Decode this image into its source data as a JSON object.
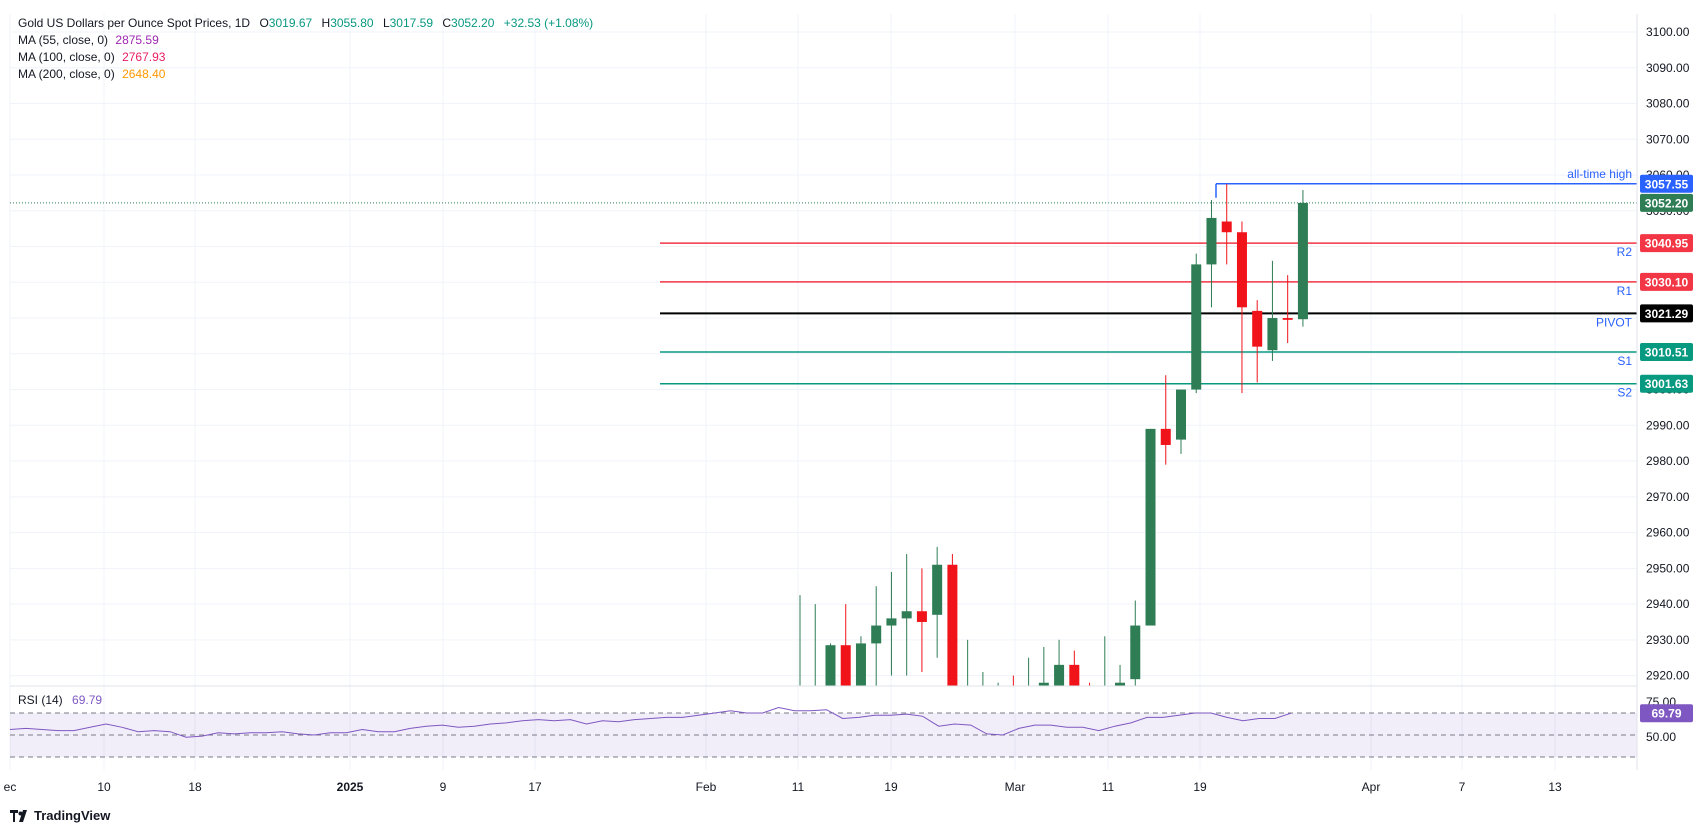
{
  "header": {
    "title": "Gold US Dollars per Ounce Spot Prices, 1D",
    "ohlc": [
      {
        "k": "O",
        "v": "3019.67"
      },
      {
        "k": "H",
        "v": "3055.80"
      },
      {
        "k": "L",
        "v": "3017.59"
      },
      {
        "k": "C",
        "v": "3052.20"
      }
    ],
    "change": "+32.53 (+1.08%)",
    "ma": [
      {
        "label": "MA (55, close, 0)",
        "value": "2875.59",
        "color": "#9c27b0"
      },
      {
        "label": "MA (100, close, 0)",
        "value": "2767.93",
        "color": "#e91e63"
      },
      {
        "label": "MA (200, close, 0)",
        "value": "2648.40",
        "color": "#ff9800"
      }
    ]
  },
  "rsi": {
    "label": "RSI (14)",
    "value": "69.79",
    "axis_labels": [
      "75.00",
      "50.00"
    ]
  },
  "brand": {
    "name": "TradingView",
    "icon": "tradingview-logo-icon"
  },
  "colors": {
    "up": "#2e7d55",
    "down": "#f0141a",
    "grid": "#f0f3fa",
    "resistance": "#f23645",
    "support": "#089981",
    "pivot": "#000000",
    "ath": "#2962ff",
    "rsi": "#7e57c2"
  },
  "chart_data": {
    "type": "candlestick",
    "title": "Gold US Dollars per Ounce Spot Prices, 1D",
    "ylim": [
      2915,
      3103
    ],
    "y_ticks": [
      "3100.00",
      "3090.00",
      "3080.00",
      "3070.00",
      "3060.00",
      "3050.00",
      "3040.00",
      "3030.00",
      "3020.00",
      "3010.00",
      "3000.00",
      "2990.00",
      "2980.00",
      "2970.00",
      "2960.00",
      "2950.00",
      "2940.00",
      "2930.00",
      "2920.00"
    ],
    "x_labels": [
      "ec",
      "10",
      "18",
      "2025",
      "9",
      "17",
      "Feb",
      "11",
      "19",
      "Mar",
      "11",
      "19",
      "Apr",
      "7",
      "13"
    ],
    "candles": [
      {
        "o": 2905.0,
        "h": 2942.5,
        "l": 2900.0,
        "c": 2906.0
      },
      {
        "o": 2905.0,
        "h": 2940.0,
        "l": 2890.0,
        "c": 2910.0
      },
      {
        "o": 2915.0,
        "h": 2929.0,
        "l": 2905.0,
        "c": 2928.5
      },
      {
        "o": 2928.5,
        "h": 2940.0,
        "l": 2900.0,
        "c": 2915.0
      },
      {
        "o": 2915.0,
        "h": 2931.0,
        "l": 2910.0,
        "c": 2929.0
      },
      {
        "o": 2929.0,
        "h": 2945.0,
        "l": 2915.0,
        "c": 2934.0
      },
      {
        "o": 2934.0,
        "h": 2949.0,
        "l": 2920.0,
        "c": 2936.0
      },
      {
        "o": 2936.0,
        "h": 2954.0,
        "l": 2920.0,
        "c": 2938.0
      },
      {
        "o": 2938.0,
        "h": 2950.0,
        "l": 2921.0,
        "c": 2935.0
      },
      {
        "o": 2937.0,
        "h": 2956.0,
        "l": 2925.0,
        "c": 2951.0
      },
      {
        "o": 2951.0,
        "h": 2954.0,
        "l": 2895.0,
        "c": 2905.0
      },
      {
        "o": 2905.0,
        "h": 2930.0,
        "l": 2895.0,
        "c": 2913.0
      },
      {
        "o": 2913.0,
        "h": 2921.0,
        "l": 2905.0,
        "c": 2916.0
      },
      {
        "o": 2905.0,
        "h": 2918.0,
        "l": 2895.0,
        "c": 2910.0
      },
      {
        "o": 2910.0,
        "h": 2920.0,
        "l": 2900.0,
        "c": 2907.0
      },
      {
        "o": 2910.0,
        "h": 2925.0,
        "l": 2900.0,
        "c": 2917.0
      },
      {
        "o": 2917.0,
        "h": 2928.0,
        "l": 2910.0,
        "c": 2918.0
      },
      {
        "o": 2917.0,
        "h": 2930.0,
        "l": 2905.0,
        "c": 2923.0
      },
      {
        "o": 2923.0,
        "h": 2927.0,
        "l": 2908.0,
        "c": 2914.0
      },
      {
        "o": 2914.0,
        "h": 2918.0,
        "l": 2900.0,
        "c": 2910.0
      },
      {
        "o": 2910.0,
        "h": 2931.0,
        "l": 2900.0,
        "c": 2912.0
      },
      {
        "o": 2910.0,
        "h": 2923.0,
        "l": 2901.0,
        "c": 2918.0
      },
      {
        "o": 2919.0,
        "h": 2941.0,
        "l": 2915.0,
        "c": 2934.0
      },
      {
        "o": 2934.0,
        "h": 2989.0,
        "l": 2934.0,
        "c": 2989.0
      },
      {
        "o": 2989.0,
        "h": 3004.0,
        "l": 2979.0,
        "c": 2984.5
      },
      {
        "o": 2986.0,
        "h": 3000.0,
        "l": 2982.0,
        "c": 3000.0
      },
      {
        "o": 3000.0,
        "h": 3038.0,
        "l": 2999.0,
        "c": 3035.0
      },
      {
        "o": 3035.0,
        "h": 3053.0,
        "l": 3023.0,
        "c": 3048.0
      },
      {
        "o": 3047.0,
        "h": 3057.5,
        "l": 3035.0,
        "c": 3044.0
      },
      {
        "o": 3044.0,
        "h": 3047.0,
        "l": 2999.0,
        "c": 3023.0
      },
      {
        "o": 3022.0,
        "h": 3025.0,
        "l": 3002.0,
        "c": 3012.0
      },
      {
        "o": 3011.0,
        "h": 3036.0,
        "l": 3008.0,
        "c": 3020.0
      },
      {
        "o": 3020.0,
        "h": 3032.0,
        "l": 3013.0,
        "c": 3019.5
      },
      {
        "o": 3019.67,
        "h": 3055.8,
        "l": 3017.59,
        "c": 3052.2
      }
    ],
    "levels": [
      {
        "name": "all-time high",
        "value": 3057.55,
        "label": "3057.55"
      },
      {
        "name": "R2",
        "value": 3040.95,
        "label": "3040.95"
      },
      {
        "name": "R1",
        "value": 3030.1,
        "label": "3030.10"
      },
      {
        "name": "PIVOT",
        "value": 3021.29,
        "label": "3021.29"
      },
      {
        "name": "S1",
        "value": 3010.51,
        "label": "3010.51"
      },
      {
        "name": "S2",
        "value": 3001.63,
        "label": "3001.63"
      }
    ],
    "last_price": {
      "value": 3052.2,
      "label": "3052.20"
    },
    "rsi_series": [
      55,
      56,
      55,
      54,
      54,
      57,
      60,
      57,
      53,
      54,
      53,
      48,
      49,
      52,
      51,
      52,
      52,
      53,
      51,
      50,
      52,
      52,
      55,
      53,
      53,
      56,
      58,
      59,
      57,
      58,
      60,
      61,
      63,
      64,
      63,
      64,
      60,
      63,
      62,
      64,
      65,
      66,
      66,
      68,
      70,
      72,
      70,
      70,
      75,
      72,
      72,
      73,
      65,
      66,
      68,
      68,
      69,
      67,
      58,
      60,
      59,
      51,
      50,
      56,
      59,
      59,
      57,
      57,
      54,
      58,
      61,
      66,
      66,
      68,
      70,
      70,
      66,
      63,
      65,
      65,
      69.79
    ],
    "rsi_ylim": [
      25,
      78
    ]
  }
}
